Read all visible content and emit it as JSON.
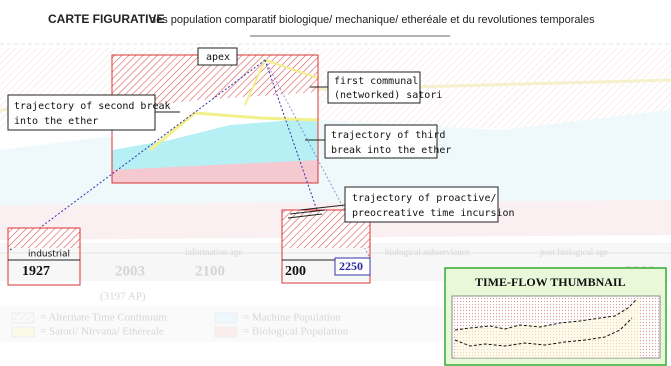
{
  "header": {
    "title_bold": "CARTE FIGURATIVE",
    "title_rest": "des population comparatif biologique/ mechanique/ etheréale et du revolutiones temporales"
  },
  "background_labels": {
    "years": [
      "2003",
      "2100",
      "2200"
    ],
    "eras": [
      "information age",
      "biological subservience",
      "post biological age"
    ],
    "note": "(3197 AP)"
  },
  "legend": [
    "= Alternate Time Continuum",
    "= Machine Population",
    "= Satori/ Nirvana/ Ethéreale",
    "= Biological Population"
  ],
  "callouts": {
    "apex": "apex",
    "first_satori": [
      "first communal",
      "(networked) satori"
    ],
    "second_break": [
      "trajectory of second break",
      "into the ether"
    ],
    "third_break": [
      "trajectory of third",
      "break into the ether"
    ],
    "proactive": [
      "trajectory of proactive/",
      "preocreative time incursion"
    ]
  },
  "zoom_boxes": {
    "industrial_label": "industrial",
    "industrial_year": "1927",
    "second_year": "200",
    "second_year_tag": "2250"
  },
  "thumbnail": {
    "title": "TIME-FLOW THUMBNAIL"
  }
}
